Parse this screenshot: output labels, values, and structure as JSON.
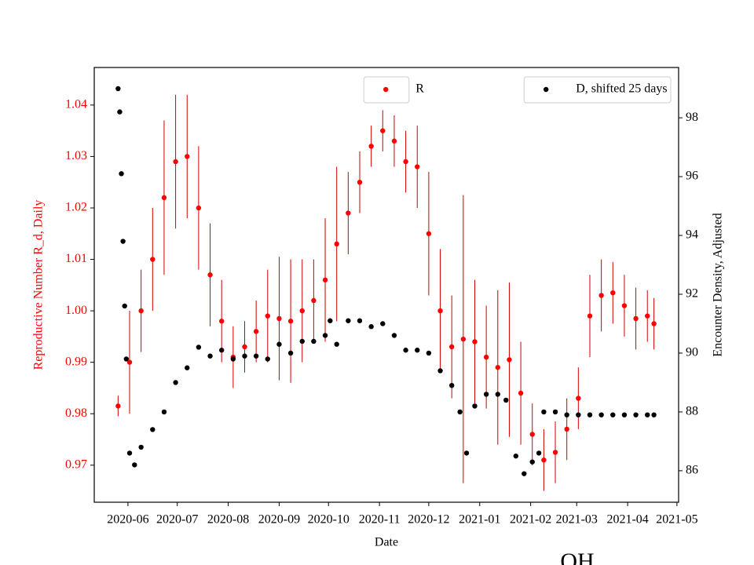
{
  "chart_data": {
    "type": "scatter",
    "x_label": "Date",
    "y_label": "Reproductive Number R_d, Daily",
    "y2_label": "Encounter Density, Adjusted",
    "annotation": "OH",
    "xlim": [
      18393.5,
      18749
    ],
    "xticks": [
      {
        "value": 18414,
        "label": "2020-06"
      },
      {
        "value": 18444,
        "label": "2020-07"
      },
      {
        "value": 18475,
        "label": "2020-08"
      },
      {
        "value": 18506,
        "label": "2020-09"
      },
      {
        "value": 18536,
        "label": "2020-10"
      },
      {
        "value": 18567,
        "label": "2020-11"
      },
      {
        "value": 18597,
        "label": "2020-12"
      },
      {
        "value": 18628,
        "label": "2021-01"
      },
      {
        "value": 18659,
        "label": "2021-02"
      },
      {
        "value": 18687,
        "label": "2021-03"
      },
      {
        "value": 18718,
        "label": "2021-04"
      },
      {
        "value": 18748,
        "label": "2021-05"
      }
    ],
    "ylim": [
      0.9628,
      1.0473
    ],
    "yticks": [
      0.97,
      0.98,
      0.99,
      {
        "value": 1.0,
        "label": "1.00"
      },
      1.01,
      1.02,
      1.03,
      1.04
    ],
    "y2lim": [
      84.93,
      99.71
    ],
    "y2ticks": [
      86,
      88,
      90,
      92,
      94,
      96,
      98
    ],
    "series": [
      {
        "name": "R",
        "color": "#ff0000",
        "legend": "upper center",
        "x": [
          18408,
          18415,
          18422,
          18429,
          18436,
          18443,
          18450,
          18457,
          18464,
          18471,
          18478,
          18485,
          18492,
          18499,
          18506,
          18513,
          18520,
          18527,
          18534,
          18541,
          18548,
          18555,
          18562,
          18569,
          18576,
          18583,
          18590,
          18597,
          18604,
          18611,
          18618,
          18625,
          18632,
          18639,
          18646,
          18653,
          18660,
          18667,
          18674,
          18681,
          18688,
          18695,
          18702,
          18709,
          18716,
          18723,
          18730,
          18734
        ],
        "values": [
          0.9815,
          0.99,
          1.0,
          1.01,
          1.022,
          1.029,
          1.03,
          1.02,
          1.007,
          0.998,
          0.991,
          0.993,
          0.996,
          0.999,
          0.9985,
          0.998,
          1.0,
          1.002,
          1.006,
          1.013,
          1.019,
          1.025,
          1.032,
          1.035,
          1.033,
          1.029,
          1.028,
          1.015,
          1.0,
          0.993,
          0.9945,
          0.994,
          0.991,
          0.989,
          0.9905,
          0.984,
          0.976,
          0.971,
          0.9725,
          0.977,
          0.983,
          0.999,
          1.003,
          1.0035,
          1.001,
          0.9985,
          0.999,
          0.9975
        ],
        "errors": [
          0.002,
          0.01,
          0.008,
          0.01,
          0.015,
          0.013,
          0.012,
          0.012,
          0.01,
          0.008,
          0.006,
          0.005,
          0.006,
          0.009,
          0.012,
          0.012,
          0.01,
          0.008,
          0.012,
          0.015,
          0.008,
          0.006,
          0.004,
          0.004,
          0.005,
          0.006,
          0.008,
          0.012,
          0.012,
          0.01,
          0.028,
          0.012,
          0.01,
          0.015,
          0.015,
          0.01,
          0.006,
          0.006,
          0.006,
          0.006,
          0.006,
          0.008,
          0.007,
          0.006,
          0.006,
          0.006,
          0.005,
          0.005
        ]
      },
      {
        "name": "D, shifted 25 days",
        "color": "#000000",
        "axis": "y2",
        "legend": "upper right",
        "x": [
          18408,
          18409,
          18410,
          18411,
          18412,
          18413,
          18415,
          18418,
          18422,
          18429,
          18436,
          18443,
          18450,
          18457,
          18464,
          18471,
          18478,
          18485,
          18492,
          18499,
          18506,
          18513,
          18520,
          18527,
          18534,
          18537,
          18541,
          18548,
          18555,
          18562,
          18569,
          18576,
          18583,
          18590,
          18597,
          18604,
          18611,
          18616,
          18620,
          18625,
          18632,
          18639,
          18644,
          18650,
          18655,
          18660,
          18664,
          18667,
          18674,
          18681,
          18688,
          18695,
          18702,
          18709,
          18716,
          18723,
          18730,
          18734
        ],
        "values": [
          98.99,
          98.2,
          96.1,
          93.8,
          91.6,
          89.8,
          86.6,
          86.2,
          86.8,
          87.4,
          88.0,
          89.0,
          89.5,
          90.2,
          89.9,
          90.1,
          89.8,
          89.9,
          89.9,
          89.8,
          90.3,
          90.0,
          90.4,
          90.4,
          90.6,
          91.1,
          90.3,
          91.1,
          91.1,
          90.9,
          91.0,
          90.6,
          90.1,
          90.1,
          90.0,
          89.4,
          88.9,
          88.0,
          86.6,
          88.2,
          88.6,
          88.6,
          88.4,
          86.5,
          85.9,
          86.3,
          86.6,
          88.0,
          88.0,
          87.9,
          87.9,
          87.9,
          87.9,
          87.9,
          87.9,
          87.9,
          87.9,
          87.9
        ]
      }
    ]
  }
}
